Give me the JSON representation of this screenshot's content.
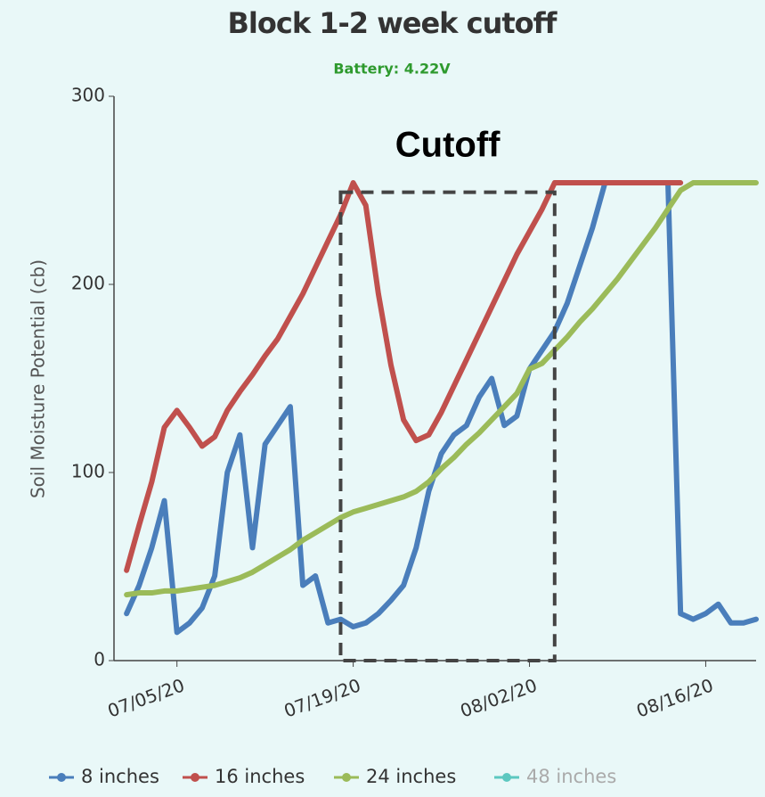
{
  "chart_data": {
    "type": "line",
    "title": "Block 1-2 week cutoff",
    "subtitle": "Battery: 4.22V",
    "y_label": "Soil Moisture Potential (cb)",
    "annotation": {
      "text": "Cutoff",
      "x": [
        "2020-07-18",
        "2020-08-04"
      ],
      "y": [
        0,
        249
      ]
    },
    "x": [
      "2020-07-01",
      "2020-07-02",
      "2020-07-03",
      "2020-07-04",
      "2020-07-05",
      "2020-07-06",
      "2020-07-07",
      "2020-07-08",
      "2020-07-09",
      "2020-07-10",
      "2020-07-11",
      "2020-07-12",
      "2020-07-13",
      "2020-07-14",
      "2020-07-15",
      "2020-07-16",
      "2020-07-17",
      "2020-07-18",
      "2020-07-19",
      "2020-07-20",
      "2020-07-21",
      "2020-07-22",
      "2020-07-23",
      "2020-07-24",
      "2020-07-25",
      "2020-07-26",
      "2020-07-27",
      "2020-07-28",
      "2020-07-29",
      "2020-07-30",
      "2020-07-31",
      "2020-08-01",
      "2020-08-02",
      "2020-08-03",
      "2020-08-04",
      "2020-08-05",
      "2020-08-06",
      "2020-08-07",
      "2020-08-08",
      "2020-08-09",
      "2020-08-10",
      "2020-08-11",
      "2020-08-12",
      "2020-08-13",
      "2020-08-14",
      "2020-08-15",
      "2020-08-16",
      "2020-08-17",
      "2020-08-18",
      "2020-08-19",
      "2020-08-20"
    ],
    "series": [
      {
        "name": "8 inches",
        "color": "#4a7ebb",
        "visible": true,
        "values": [
          25,
          40,
          60,
          85,
          15,
          20,
          28,
          45,
          100,
          120,
          60,
          115,
          125,
          135,
          40,
          45,
          20,
          22,
          18,
          20,
          25,
          32,
          40,
          60,
          90,
          110,
          120,
          125,
          140,
          150,
          125,
          130,
          155,
          165,
          175,
          190,
          210,
          230,
          254,
          254,
          254,
          254,
          254,
          254,
          25,
          22,
          25,
          30,
          20,
          20,
          22
        ]
      },
      {
        "name": "16 inches",
        "color": "#c0504d",
        "visible": true,
        "values": [
          48,
          72,
          95,
          124,
          133,
          124,
          114,
          119,
          133,
          143,
          152,
          162,
          171,
          183,
          195,
          209,
          223,
          237,
          254,
          242,
          195,
          157,
          128,
          117,
          120,
          132,
          146,
          160,
          174,
          188,
          202,
          216,
          228,
          240,
          254,
          254,
          254,
          254,
          254,
          254,
          254,
          254,
          254,
          254,
          254,
          null,
          null,
          null,
          null,
          null,
          null
        ]
      },
      {
        "name": "24 inches",
        "color": "#9bbb59",
        "visible": true,
        "values": [
          35,
          36,
          36,
          37,
          37,
          38,
          39,
          40,
          42,
          44,
          47,
          51,
          55,
          59,
          64,
          68,
          72,
          76,
          79,
          81,
          83,
          85,
          87,
          90,
          95,
          102,
          108,
          115,
          121,
          128,
          135,
          142,
          155,
          158,
          165,
          172,
          180,
          187,
          195,
          203,
          212,
          221,
          230,
          240,
          250,
          254,
          254,
          254,
          254,
          254,
          254
        ]
      },
      {
        "name": "48 inches",
        "color": "#5cc8c0",
        "visible": false,
        "values": [
          null,
          null,
          null,
          null,
          null,
          null,
          null,
          null,
          null,
          null,
          null,
          null,
          null,
          null,
          null,
          null,
          null,
          null,
          null,
          null,
          null,
          null,
          null,
          null,
          null,
          null,
          null,
          null,
          null,
          null,
          null,
          null,
          null,
          null,
          null,
          null,
          null,
          null,
          null,
          null,
          null,
          null,
          null,
          null,
          null,
          null,
          null,
          null,
          null,
          null,
          null
        ]
      }
    ],
    "xlim": [
      "2020-06-30",
      "2020-08-20"
    ],
    "xticks": [
      {
        "value": "2020-07-05",
        "label": "07/05/20"
      },
      {
        "value": "2020-07-19",
        "label": "07/19/20"
      },
      {
        "value": "2020-08-02",
        "label": "08/02/20"
      },
      {
        "value": "2020-08-16",
        "label": "08/16/20"
      }
    ],
    "ylim": [
      0,
      300
    ],
    "yticks": [
      0,
      100,
      200,
      300
    ],
    "grid": false,
    "legend": "bottom"
  }
}
